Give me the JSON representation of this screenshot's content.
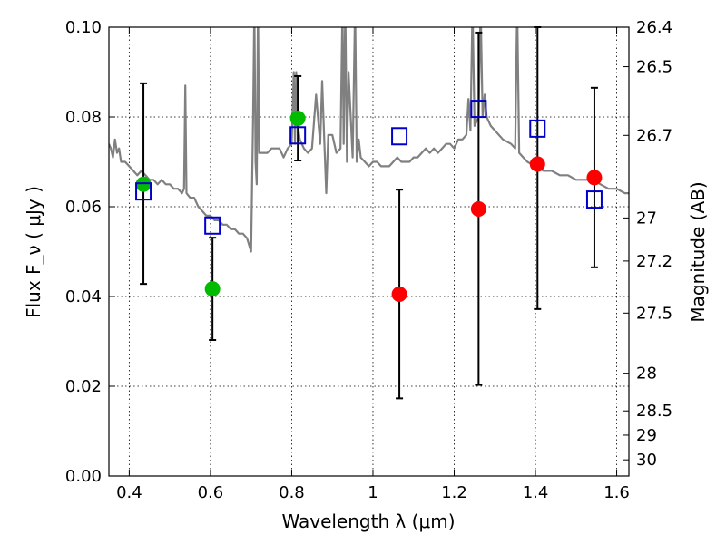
{
  "chart_data": {
    "type": "scatter",
    "xlabel": "Wavelength  λ (μm)",
    "ylabel": "Flux  F_ν  ( μJy )",
    "ylabel_right": "Magnitude (AB)",
    "xlim": [
      0.35,
      1.63
    ],
    "ylim": [
      0.0,
      0.1
    ],
    "grid": true,
    "x_ticks": [
      0.4,
      0.6,
      0.8,
      1.0,
      1.2,
      1.4,
      1.6
    ],
    "x_tick_labels": [
      "0.4",
      "0.6",
      "0.8",
      "1",
      "1.2",
      "1.4",
      "1.6"
    ],
    "y_ticks": [
      0.0,
      0.02,
      0.04,
      0.06,
      0.08,
      0.1
    ],
    "y_tick_labels": [
      "0.00",
      "0.02",
      "0.04",
      "0.06",
      "0.08",
      "0.10"
    ],
    "right_ticks": [
      {
        "label": "26.4",
        "flux": 0.1
      },
      {
        "label": "26.5",
        "flux": 0.0912
      },
      {
        "label": "26.7",
        "flux": 0.0759
      },
      {
        "label": "27",
        "flux": 0.0575
      },
      {
        "label": "27.2",
        "flux": 0.0479
      },
      {
        "label": "27.5",
        "flux": 0.0363
      },
      {
        "label": "28",
        "flux": 0.0229
      },
      {
        "label": "28.5",
        "flux": 0.0145
      },
      {
        "label": "29",
        "flux": 0.0091
      },
      {
        "label": "30",
        "flux": 0.0036
      }
    ],
    "colors": {
      "model": "#808080",
      "detected": "#00bb00",
      "observed_red": "#ff0000",
      "model_band": "#0000cc",
      "errorbar": "#000000"
    },
    "model_spectrum": {
      "x": [
        0.35,
        0.355,
        0.36,
        0.365,
        0.37,
        0.375,
        0.38,
        0.39,
        0.4,
        0.41,
        0.42,
        0.43,
        0.44,
        0.45,
        0.46,
        0.47,
        0.48,
        0.49,
        0.5,
        0.51,
        0.52,
        0.53,
        0.535,
        0.538,
        0.541,
        0.55,
        0.56,
        0.57,
        0.58,
        0.59,
        0.6,
        0.61,
        0.62,
        0.63,
        0.64,
        0.65,
        0.66,
        0.67,
        0.68,
        0.69,
        0.7,
        0.705,
        0.708,
        0.711,
        0.714,
        0.717,
        0.72,
        0.73,
        0.74,
        0.75,
        0.76,
        0.77,
        0.78,
        0.79,
        0.8,
        0.805,
        0.808,
        0.811,
        0.815,
        0.82,
        0.83,
        0.84,
        0.85,
        0.86,
        0.87,
        0.875,
        0.88,
        0.885,
        0.89,
        0.9,
        0.91,
        0.92,
        0.925,
        0.928,
        0.932,
        0.936,
        0.94,
        0.95,
        0.956,
        0.96,
        0.965,
        0.97,
        0.98,
        0.99,
        1.0,
        1.01,
        1.02,
        1.03,
        1.04,
        1.05,
        1.06,
        1.07,
        1.08,
        1.09,
        1.1,
        1.11,
        1.12,
        1.13,
        1.14,
        1.15,
        1.16,
        1.17,
        1.18,
        1.19,
        1.2,
        1.21,
        1.22,
        1.23,
        1.235,
        1.24,
        1.245,
        1.25,
        1.26,
        1.265,
        1.27,
        1.275,
        1.28,
        1.29,
        1.3,
        1.32,
        1.34,
        1.35,
        1.355,
        1.36,
        1.37,
        1.38,
        1.4,
        1.42,
        1.44,
        1.46,
        1.48,
        1.5,
        1.52,
        1.54,
        1.56,
        1.58,
        1.6,
        1.62,
        1.63
      ],
      "y": [
        0.074,
        0.073,
        0.071,
        0.075,
        0.072,
        0.073,
        0.07,
        0.07,
        0.069,
        0.068,
        0.067,
        0.068,
        0.067,
        0.066,
        0.066,
        0.065,
        0.066,
        0.065,
        0.065,
        0.064,
        0.064,
        0.063,
        0.064,
        0.087,
        0.063,
        0.062,
        0.062,
        0.06,
        0.059,
        0.058,
        0.058,
        0.057,
        0.057,
        0.056,
        0.056,
        0.055,
        0.055,
        0.054,
        0.054,
        0.053,
        0.05,
        0.08,
        0.105,
        0.07,
        0.065,
        0.105,
        0.072,
        0.072,
        0.072,
        0.073,
        0.073,
        0.073,
        0.071,
        0.073,
        0.074,
        0.09,
        0.074,
        0.09,
        0.078,
        0.075,
        0.073,
        0.072,
        0.073,
        0.085,
        0.074,
        0.088,
        0.075,
        0.063,
        0.076,
        0.076,
        0.072,
        0.073,
        0.105,
        0.074,
        0.105,
        0.07,
        0.09,
        0.071,
        0.105,
        0.07,
        0.075,
        0.071,
        0.07,
        0.069,
        0.07,
        0.07,
        0.069,
        0.069,
        0.069,
        0.07,
        0.071,
        0.07,
        0.07,
        0.07,
        0.071,
        0.071,
        0.072,
        0.073,
        0.072,
        0.073,
        0.072,
        0.073,
        0.074,
        0.074,
        0.073,
        0.075,
        0.075,
        0.076,
        0.084,
        0.077,
        0.105,
        0.078,
        0.08,
        0.105,
        0.08,
        0.085,
        0.08,
        0.078,
        0.077,
        0.075,
        0.074,
        0.073,
        0.105,
        0.072,
        0.071,
        0.07,
        0.069,
        0.068,
        0.068,
        0.067,
        0.067,
        0.066,
        0.066,
        0.066,
        0.065,
        0.064,
        0.064,
        0.063,
        0.063
      ]
    },
    "series": [
      {
        "name": "",
        "marker": "circle",
        "color_key": "detected",
        "points": [
          {
            "x": 0.435,
            "y": 0.065,
            "err_low": 0.0428,
            "err_high": 0.0875
          },
          {
            "x": 0.605,
            "y": 0.0417,
            "err_low": 0.0303,
            "err_high": 0.0531
          },
          {
            "x": 0.815,
            "y": 0.0797,
            "err_low": 0.0703,
            "err_high": 0.0891
          }
        ]
      },
      {
        "name": "",
        "marker": "circle",
        "color_key": "observed_red",
        "points": [
          {
            "x": 1.065,
            "y": 0.0405,
            "err_low": 0.0173,
            "err_high": 0.0638
          },
          {
            "x": 1.26,
            "y": 0.0595,
            "err_low": 0.0203,
            "err_high": 0.0988
          },
          {
            "x": 1.405,
            "y": 0.0695,
            "err_low": 0.0372,
            "err_high": 0.1
          },
          {
            "x": 1.545,
            "y": 0.0665,
            "err_low": 0.0465,
            "err_high": 0.0865
          }
        ]
      },
      {
        "name": "",
        "marker": "square",
        "color_key": "model_band",
        "points": [
          {
            "x": 0.435,
            "y": 0.0632
          },
          {
            "x": 0.605,
            "y": 0.0556
          },
          {
            "x": 0.815,
            "y": 0.0757
          },
          {
            "x": 1.065,
            "y": 0.0755
          },
          {
            "x": 1.26,
            "y": 0.0816
          },
          {
            "x": 1.405,
            "y": 0.0772
          },
          {
            "x": 1.545,
            "y": 0.0614
          }
        ]
      }
    ]
  }
}
